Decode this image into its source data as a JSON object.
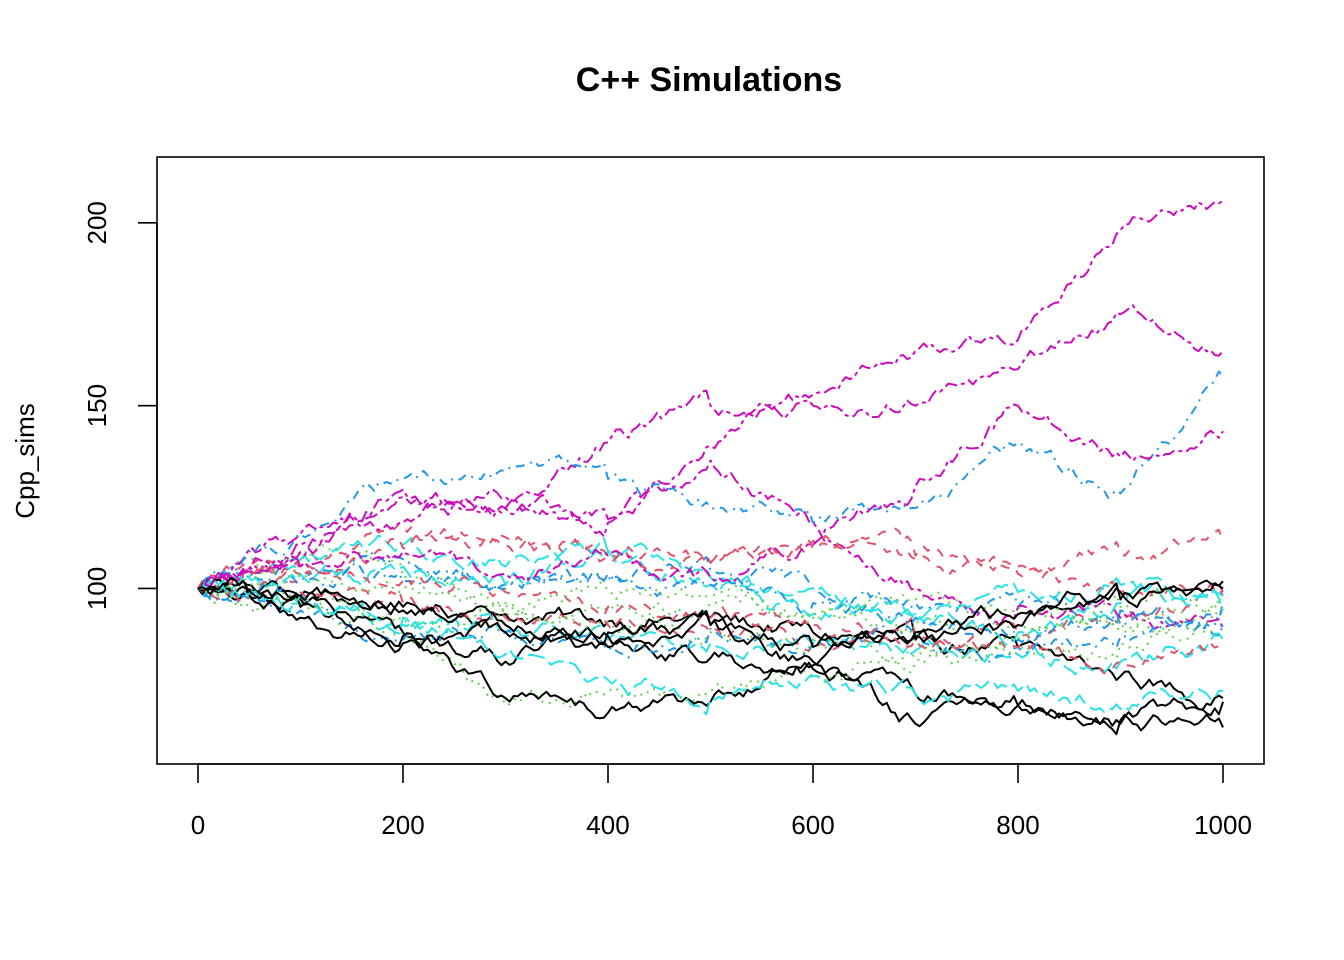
{
  "chart_data": {
    "type": "line",
    "title": "C++ Simulations",
    "xlabel": "",
    "ylabel": "Cpp_sims",
    "xlim": [
      -40,
      1040
    ],
    "ylim": [
      52,
      218
    ],
    "xticks": [
      0,
      200,
      400,
      600,
      800,
      1000
    ],
    "yticks": [
      100,
      150,
      200
    ],
    "xtick_labels": [
      "0",
      "200",
      "400",
      "600",
      "800",
      "1000"
    ],
    "ytick_labels": [
      "100",
      "150",
      "200"
    ],
    "grid": false,
    "legend": "none",
    "colors": [
      "#000000",
      "#DF536B",
      "#61D04F",
      "#2297E6",
      "#28E2E5",
      "#CD0BBC"
    ],
    "line_styles": [
      "solid",
      "dashed",
      "dotted",
      "dotdash",
      "longdash",
      "twodash"
    ],
    "series": [
      {
        "x": [
          0,
          100,
          200,
          300,
          400,
          500,
          600,
          700,
          800,
          900,
          1000
        ],
        "values": [
          100,
          98,
          95,
          93,
          91,
          92,
          88,
          86,
          84,
          76,
          69
        ]
      },
      {
        "x": [
          0,
          100,
          200,
          300,
          400,
          500,
          600,
          700,
          800,
          900,
          1000
        ],
        "values": [
          100,
          99,
          96,
          92,
          90,
          88,
          85,
          87,
          88,
          93,
          98
        ]
      },
      {
        "x": [
          0,
          100,
          200,
          300,
          400,
          500,
          600,
          700,
          800,
          900,
          1000
        ],
        "values": [
          100,
          110,
          103,
          96,
          94,
          96,
          92,
          91,
          90,
          89,
          88
        ]
      },
      {
        "x": [
          0,
          100,
          200,
          300,
          400,
          500,
          600,
          700,
          800,
          900,
          1000
        ],
        "values": [
          100,
          107,
          102,
          100,
          103,
          105,
          100,
          96,
          95,
          94,
          90
        ]
      },
      {
        "x": [
          0,
          100,
          200,
          300,
          400,
          500,
          600,
          700,
          800,
          900,
          1000
        ],
        "values": [
          100,
          96,
          90,
          88,
          86,
          85,
          86,
          83,
          82,
          80,
          86
        ]
      },
      {
        "x": [
          0,
          100,
          200,
          300,
          400,
          500,
          600,
          700,
          800,
          900,
          1000
        ],
        "values": [
          100,
          115,
          125,
          122,
          118,
          135,
          118,
          100,
          95,
          92,
          89
        ]
      },
      {
        "x": [
          0,
          100,
          200,
          300,
          400,
          500,
          600,
          700,
          800,
          900,
          1000
        ],
        "values": [
          100,
          97,
          88,
          80,
          87,
          81,
          78,
          71,
          68,
          64,
          62
        ]
      },
      {
        "x": [
          0,
          100,
          200,
          300,
          400,
          500,
          600,
          700,
          800,
          900,
          1000
        ],
        "values": [
          100,
          108,
          117,
          112,
          109,
          107,
          113,
          108,
          104,
          100,
          99
        ]
      },
      {
        "x": [
          0,
          100,
          200,
          300,
          400,
          500,
          600,
          700,
          800,
          900,
          1000
        ],
        "values": [
          100,
          97,
          92,
          93,
          91,
          88,
          86,
          82,
          83,
          85,
          94
        ]
      },
      {
        "x": [
          0,
          100,
          200,
          300,
          400,
          500,
          600,
          700,
          800,
          900,
          1000
        ],
        "values": [
          100,
          94,
          86,
          88,
          83,
          89,
          85,
          88,
          84,
          87,
          90
        ]
      },
      {
        "x": [
          0,
          100,
          200,
          300,
          400,
          500,
          600,
          700,
          800,
          900,
          1000
        ],
        "values": [
          100,
          108,
          112,
          106,
          110,
          101,
          100,
          91,
          88,
          96,
          98
        ]
      },
      {
        "x": [
          0,
          100,
          200,
          300,
          400,
          500,
          600,
          700,
          800,
          900,
          1000
        ],
        "values": [
          100,
          110,
          118,
          125,
          140,
          150,
          150,
          150,
          160,
          175,
          165
        ]
      },
      {
        "x": [
          0,
          100,
          200,
          300,
          400,
          500,
          600,
          700,
          800,
          900,
          1000
        ],
        "values": [
          100,
          92,
          85,
          88,
          84,
          90,
          80,
          63,
          68,
          63,
          70
        ]
      },
      {
        "x": [
          0,
          100,
          200,
          300,
          400,
          500,
          600,
          700,
          800,
          900,
          1000
        ],
        "values": [
          100,
          104,
          111,
          114,
          109,
          107,
          111,
          109,
          106,
          110,
          113
        ]
      },
      {
        "x": [
          0,
          100,
          200,
          300,
          400,
          500,
          600,
          700,
          800,
          900,
          1000
        ],
        "values": [
          100,
          96,
          88,
          68,
          72,
          72,
          76,
          80,
          86,
          95,
          98
        ]
      },
      {
        "x": [
          0,
          100,
          200,
          300,
          400,
          500,
          600,
          700,
          800,
          900,
          1000
        ],
        "values": [
          100,
          102,
          108,
          101,
          104,
          101,
          96,
          92,
          86,
          90,
          96
        ]
      },
      {
        "x": [
          0,
          100,
          200,
          300,
          400,
          500,
          600,
          700,
          800,
          900,
          1000
        ],
        "values": [
          100,
          104,
          106,
          101,
          110,
          103,
          93,
          93,
          99,
          101,
          94
        ]
      },
      {
        "x": [
          0,
          100,
          200,
          300,
          400,
          500,
          600,
          700,
          800,
          900,
          1000
        ],
        "values": [
          100,
          112,
          127,
          122,
          119,
          139,
          153,
          165,
          168,
          198,
          206
        ]
      },
      {
        "x": [
          0,
          100,
          200,
          300,
          400,
          500,
          600,
          700,
          800,
          900,
          1000
        ],
        "values": [
          100,
          95,
          87,
          70,
          66,
          69,
          79,
          87,
          90,
          97,
          100
        ]
      },
      {
        "x": [
          0,
          100,
          200,
          300,
          400,
          500,
          600,
          700,
          800,
          900,
          1000
        ],
        "values": [
          100,
          105,
          102,
          99,
          95,
          92,
          90,
          86,
          84,
          80,
          84
        ]
      },
      {
        "x": [
          0,
          100,
          200,
          300,
          400,
          500,
          600,
          700,
          800,
          900,
          1000
        ],
        "values": [
          100,
          103,
          100,
          95,
          100,
          98,
          93,
          97,
          95,
          90,
          93
        ]
      },
      {
        "x": [
          0,
          100,
          200,
          300,
          400,
          500,
          600,
          700,
          800,
          900,
          1000
        ],
        "values": [
          100,
          115,
          130,
          132,
          130,
          122,
          118,
          122,
          140,
          126,
          158
        ]
      },
      {
        "x": [
          0,
          100,
          200,
          300,
          400,
          500,
          600,
          700,
          800,
          900,
          1000
        ],
        "values": [
          100,
          98,
          92,
          82,
          75,
          70,
          76,
          71,
          72,
          67,
          72
        ]
      },
      {
        "x": [
          0,
          100,
          200,
          300,
          400,
          500,
          600,
          700,
          800,
          900,
          1000
        ],
        "values": [
          100,
          106,
          110,
          104,
          109,
          103,
          112,
          128,
          150,
          136,
          143
        ]
      },
      {
        "x": [
          0,
          100,
          200,
          300,
          400,
          500,
          600,
          700,
          800,
          900,
          1000
        ],
        "values": [
          100,
          98,
          94,
          90,
          88,
          90,
          84,
          88,
          93,
          99,
          102
        ]
      }
    ]
  }
}
